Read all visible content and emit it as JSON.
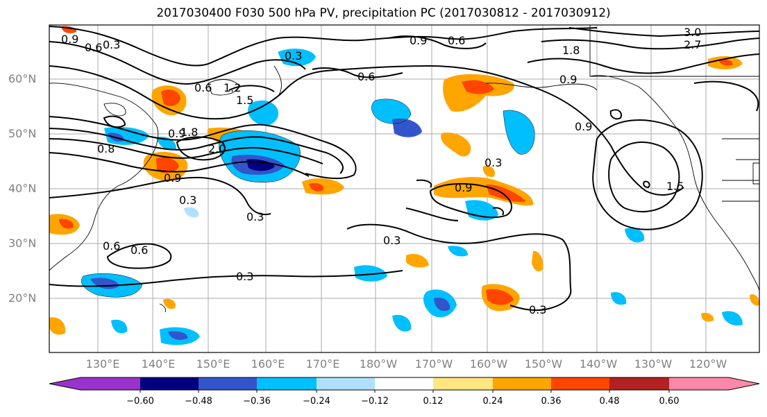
{
  "title": "2017030400 F030 500 hPa PV, precipitation PC (2017030812 - 2017030912)",
  "lat_labels": [
    "60°N",
    "50°N",
    "40°N",
    "30°N",
    "20°N"
  ],
  "lon_labels": [
    "130°E",
    "140°E",
    "150°E",
    "160°E",
    "170°E",
    "180°W",
    "170°W",
    "160°W",
    "150°W",
    "140°W",
    "130°W",
    "120°W"
  ],
  "colorbar": {
    "labels": [
      "−0.60",
      "−0.48",
      "−0.36",
      "−0.24",
      "−0.12",
      "0.12",
      "0.24",
      "0.36",
      "0.48",
      "0.60"
    ],
    "colors": [
      "#9933cc",
      "#000080",
      "#3355cc",
      "#00bfff",
      "#b0e0ff",
      "#ffffff",
      "#ffe680",
      "#ffa500",
      "#ff4500",
      "#b22222",
      "#ff88aa"
    ]
  },
  "contour_labels": [
    "0.9",
    "0.6",
    "0.3",
    "0.3",
    "0.9",
    "0.6",
    "3.0",
    "2.7",
    "1.8",
    "0.6",
    "0.6",
    "1.5",
    "1.2",
    "0.9",
    "0.8",
    "1.8",
    "2.0",
    "0.9",
    "0.3",
    "0.3",
    "0.9",
    "0.3",
    "1.5",
    "0.6",
    "0.3",
    "0.3",
    "0.3",
    "0.6",
    "0.9",
    "0.9"
  ],
  "colors": {
    "grid": "#aaaaaa",
    "frame": "#000000",
    "contour": "#000000"
  }
}
